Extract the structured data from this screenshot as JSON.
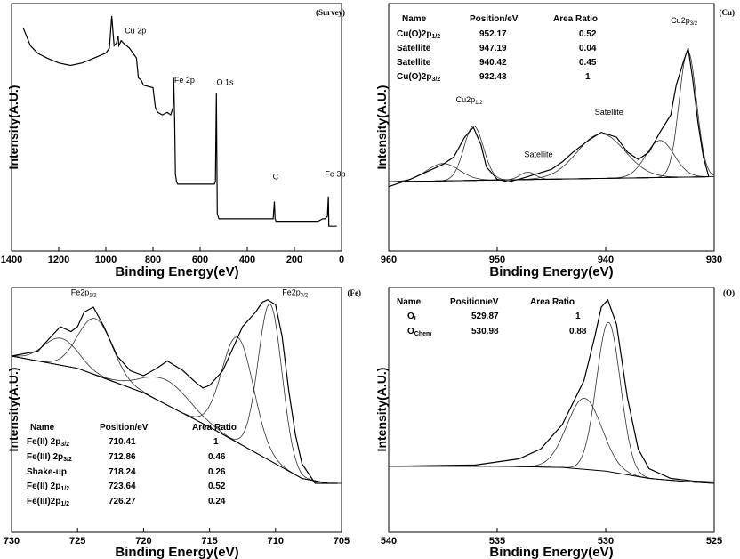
{
  "chart_data": [
    {
      "id": "survey",
      "type": "line",
      "panel_tag": "(Survey)",
      "xlabel": "Binding Energy(eV)",
      "ylabel": "Intensity(A.U.)",
      "xlim": [
        1400,
        0
      ],
      "xticks": [
        "1400",
        "1200",
        "1000",
        "800",
        "600",
        "400",
        "200",
        "0"
      ],
      "ylim": [
        0,
        100
      ],
      "series": [
        {
          "x": [
            1350,
            1320,
            1290,
            1250,
            1200,
            1150,
            1100,
            1050,
            1000,
            985,
            975,
            965,
            955,
            948,
            945,
            935,
            925,
            900,
            885,
            870,
            862,
            850,
            840,
            800,
            790,
            780,
            760,
            740,
            725,
            715,
            712,
            708,
            705,
            700,
            695,
            650,
            600,
            560,
            540,
            535,
            531,
            527,
            520,
            480,
            400,
            350,
            300,
            290,
            285,
            282,
            278,
            250,
            200,
            150,
            100,
            80,
            70,
            60,
            56,
            54,
            50,
            40,
            30,
            20
          ],
          "y": [
            90,
            83,
            80,
            78,
            76,
            75,
            76,
            78,
            80,
            82,
            95,
            83,
            84,
            87,
            83,
            85,
            84,
            82,
            80,
            78,
            70,
            69,
            67,
            66,
            58,
            56,
            55,
            56,
            55,
            58,
            70,
            52,
            31,
            28,
            27,
            27,
            27,
            27,
            27,
            28,
            64,
            15,
            13,
            13,
            13,
            13,
            13,
            13,
            20,
            13,
            12,
            12,
            12,
            12,
            12,
            13,
            13,
            14,
            22,
            10,
            10,
            10,
            10,
            10
          ]
        }
      ],
      "annotations": [
        {
          "text": "Cu 2p",
          "x": 920,
          "y": 88
        },
        {
          "text": "Fe 2p",
          "x": 710,
          "y": 68
        },
        {
          "text": "O 1s",
          "x": 530,
          "y": 67
        },
        {
          "text": "C",
          "x": 292,
          "y": 29
        },
        {
          "text": "Fe 3p",
          "x": 70,
          "y": 30
        }
      ]
    },
    {
      "id": "cu",
      "type": "line",
      "panel_tag": "(Cu)",
      "xlabel": "Binding Energy(eV)",
      "ylabel": "Intensity(A.U.)",
      "xlim": [
        960,
        930
      ],
      "xticks": [
        "960",
        "950",
        "940",
        "930"
      ],
      "ylim": [
        0,
        100
      ],
      "table": {
        "headers": [
          "Name",
          "Position/eV",
          "Area Ratio"
        ],
        "rows": [
          [
            "Cu(O)2p1/2",
            "952.17",
            "0.52"
          ],
          [
            "Satellite",
            "947.19",
            "0.04"
          ],
          [
            "Satellite",
            "940.42",
            "0.45"
          ],
          [
            "Cu(O)2p3/2",
            "932.43",
            "1"
          ]
        ]
      },
      "series": [
        {
          "name": "envelope",
          "x": [
            960,
            958,
            956,
            955,
            954,
            953,
            952.2,
            951.5,
            951,
            950,
            949,
            948,
            947.2,
            946.5,
            945,
            944,
            943,
            941.5,
            940.4,
            939,
            938,
            937,
            936,
            935,
            934,
            933.5,
            932.8,
            932.4,
            932,
            931.5,
            931,
            930.5
          ],
          "y": [
            26,
            29,
            33,
            35,
            38,
            46,
            50,
            43,
            34,
            29,
            28,
            29,
            30,
            31,
            33,
            36,
            40,
            45,
            48,
            46,
            40,
            37,
            40,
            48,
            55,
            67,
            77,
            82,
            70,
            52,
            38,
            30
          ]
        },
        {
          "name": "baseline",
          "x": [
            960,
            930.5
          ],
          "y": [
            28,
            30
          ]
        }
      ],
      "components": [
        {
          "center": 952.17,
          "height": 22,
          "width": 0.9
        },
        {
          "center": 955.0,
          "height": 7,
          "width": 1.5
        },
        {
          "center": 947.19,
          "height": 3,
          "width": 0.7
        },
        {
          "center": 940.42,
          "height": 18,
          "width": 2.2
        },
        {
          "center": 935.0,
          "height": 15,
          "width": 1.3
        },
        {
          "center": 932.43,
          "height": 51,
          "width": 0.8
        }
      ],
      "annotations": [
        {
          "text": "Cu2p",
          "sub": "1/2",
          "x": 953.8,
          "y": 60
        },
        {
          "text": "Satellite",
          "x": 947.5,
          "y": 38
        },
        {
          "text": "Satellite",
          "x": 941,
          "y": 55
        },
        {
          "text": "Cu2p",
          "sub": "3/2",
          "x": 934,
          "y": 92
        }
      ]
    },
    {
      "id": "fe",
      "type": "line",
      "panel_tag": "(Fe)",
      "xlabel": "Binding Energy(eV)",
      "ylabel": "Intensity(A.U.)",
      "xlim": [
        730,
        705
      ],
      "xticks": [
        "730",
        "725",
        "720",
        "715",
        "710",
        "705"
      ],
      "ylim": [
        0,
        100
      ],
      "table": {
        "headers": [
          "Name",
          "Position/eV",
          "Area Ratio"
        ],
        "rows": [
          [
            "Fe(II) 2p3/2",
            "710.41",
            "1"
          ],
          [
            "Fe(III) 2p3/2",
            "712.86",
            "0.46"
          ],
          [
            "Shake-up",
            "718.24",
            "0.26"
          ],
          [
            "Fe(II) 2p1/2",
            "723.64",
            "0.52"
          ],
          [
            "Fe(III)2p1/2",
            "726.27",
            "0.24"
          ]
        ]
      },
      "series": [
        {
          "name": "envelope",
          "x": [
            730,
            728,
            727,
            726.3,
            725.5,
            725,
            724.5,
            723.8,
            723,
            722,
            721,
            720,
            719,
            718.2,
            717,
            716,
            715.5,
            715,
            714,
            713,
            712.5,
            711.5,
            711,
            710.6,
            710,
            709.5,
            709,
            708.5,
            708,
            707,
            706,
            705.3
          ],
          "y": [
            72,
            74,
            80,
            84,
            82,
            84,
            90,
            92,
            84,
            72,
            66,
            64,
            67,
            70,
            66,
            61,
            59,
            60,
            66,
            78,
            84,
            90,
            94,
            95,
            93,
            80,
            58,
            40,
            28,
            20,
            20,
            20
          ]
        },
        {
          "name": "baseline",
          "x": [
            730,
            725,
            720,
            715,
            712,
            710,
            708,
            706,
            705.3
          ],
          "y": [
            72,
            67,
            57,
            43,
            34,
            28,
            22,
            20,
            20
          ]
        }
      ],
      "components": [
        {
          "center": 726.27,
          "height": 11,
          "width": 1.3
        },
        {
          "center": 723.64,
          "height": 23,
          "width": 1.3
        },
        {
          "center": 718.24,
          "height": 10,
          "width": 1.8
        },
        {
          "center": 712.86,
          "height": 43,
          "width": 1.2
        },
        {
          "center": 710.41,
          "height": 64,
          "width": 0.9
        }
      ],
      "annotations": [
        {
          "text": "Fe2p",
          "sub": "1/2",
          "x": 725.5,
          "y": 97
        },
        {
          "text": "Fe2p",
          "sub": "3/2",
          "x": 709.5,
          "y": 97
        }
      ]
    },
    {
      "id": "o",
      "type": "line",
      "panel_tag": "(O)",
      "xlabel": "Binding Energy(eV)",
      "ylabel": "Intensity(A.U.)",
      "xlim": [
        540,
        525
      ],
      "xticks": [
        "540",
        "535",
        "530",
        "525"
      ],
      "ylim": [
        0,
        100
      ],
      "table": {
        "headers": [
          "Name",
          "Position/eV",
          "Area Ratio"
        ],
        "rows": [
          [
            "OL",
            "529.87",
            "1"
          ],
          [
            "OChem",
            "530.98",
            "0.88"
          ]
        ]
      },
      "series": [
        {
          "name": "envelope",
          "x": [
            540,
            536,
            534,
            533,
            532,
            531.5,
            531,
            530.5,
            530.2,
            529.9,
            529.5,
            529,
            528.5,
            528,
            527,
            526,
            525
          ],
          "y": [
            27,
            27.5,
            30,
            34,
            44,
            53,
            62,
            80,
            92,
            95,
            85,
            55,
            34,
            26,
            22,
            21,
            20.5
          ]
        },
        {
          "name": "baseline",
          "x": [
            540,
            535,
            532,
            530,
            528,
            526,
            525
          ],
          "y": [
            27,
            27,
            26.5,
            25,
            22,
            20.5,
            20
          ]
        }
      ],
      "components": [
        {
          "center": 530.98,
          "height": 29,
          "width": 0.8
        },
        {
          "center": 529.87,
          "height": 61,
          "width": 0.55
        }
      ],
      "annotations": []
    }
  ]
}
